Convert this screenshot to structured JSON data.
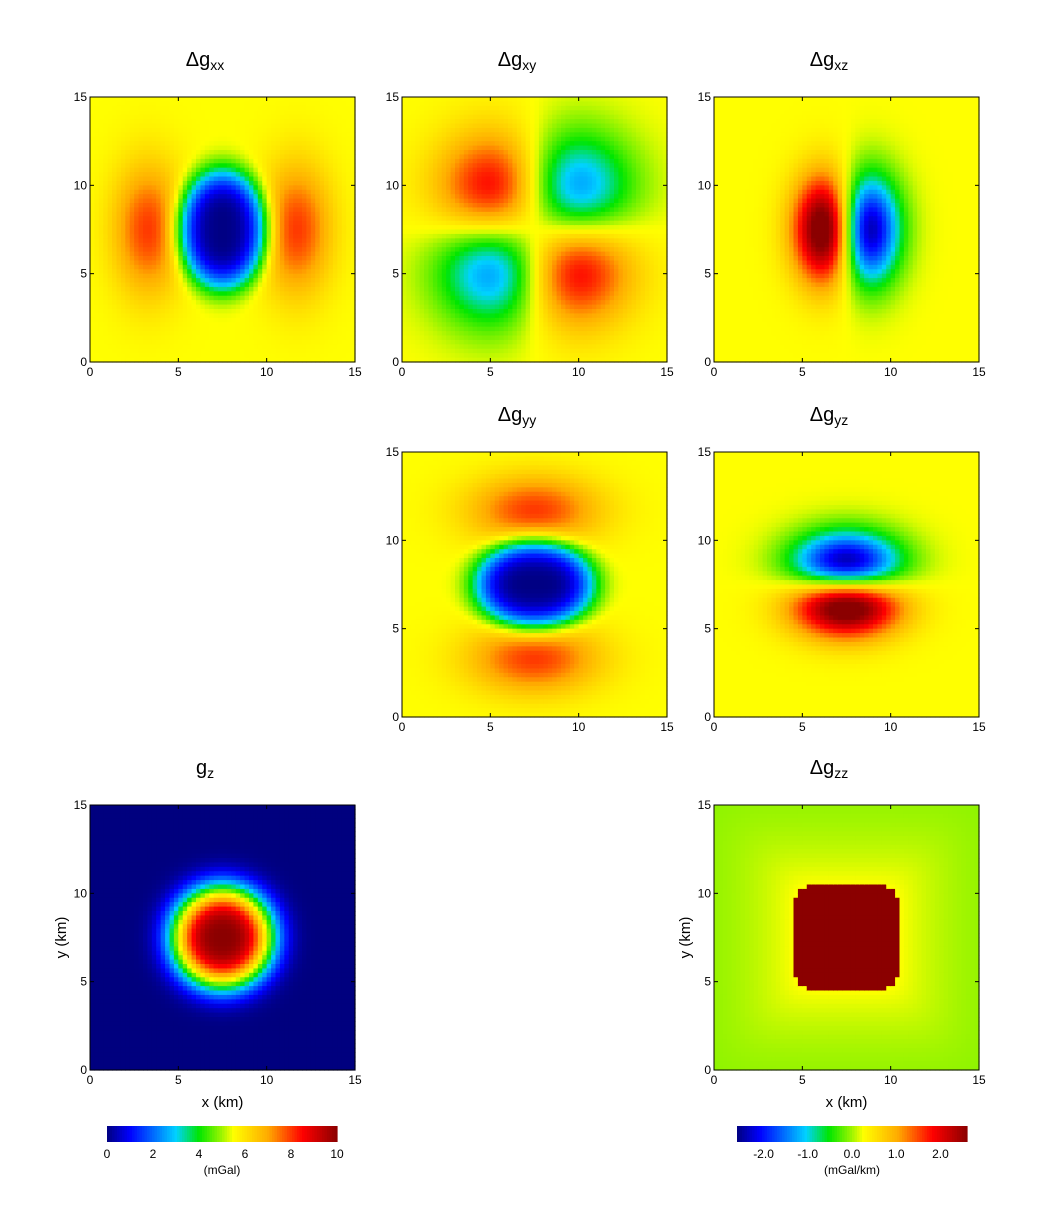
{
  "chart_data": [
    {
      "id": "gxx",
      "type": "heatmap",
      "title_prefix": "Δg",
      "title_sub": "xx",
      "pattern": "gxx",
      "xlim": [
        0,
        15
      ],
      "ylim": [
        0,
        15
      ],
      "xticks": [
        "0",
        "5",
        "10",
        "15"
      ],
      "yticks": [
        "0",
        "5",
        "10",
        "15"
      ],
      "xlabel": "",
      "ylabel": "",
      "colorscale": "mGal/km",
      "value_range": [
        -2.5,
        2.5
      ]
    },
    {
      "id": "gxy",
      "type": "heatmap",
      "title_prefix": "Δg",
      "title_sub": "xy",
      "pattern": "gxy",
      "xlim": [
        0,
        15
      ],
      "ylim": [
        0,
        15
      ],
      "xticks": [
        "0",
        "5",
        "10",
        "15"
      ],
      "yticks": [
        "0",
        "5",
        "10",
        "15"
      ],
      "xlabel": "",
      "ylabel": "",
      "colorscale": "mGal/km",
      "value_range": [
        -2.5,
        2.5
      ]
    },
    {
      "id": "gxz",
      "type": "heatmap",
      "title_prefix": "Δg",
      "title_sub": "xz",
      "pattern": "gxz",
      "xlim": [
        0,
        15
      ],
      "ylim": [
        0,
        15
      ],
      "xticks": [
        "0",
        "5",
        "10",
        "15"
      ],
      "yticks": [
        "0",
        "5",
        "10",
        "15"
      ],
      "xlabel": "",
      "ylabel": "",
      "colorscale": "mGal/km",
      "value_range": [
        -2.5,
        2.5
      ]
    },
    {
      "id": "gyy",
      "type": "heatmap",
      "title_prefix": "Δg",
      "title_sub": "yy",
      "pattern": "gyy",
      "xlim": [
        0,
        15
      ],
      "ylim": [
        0,
        15
      ],
      "xticks": [
        "0",
        "5",
        "10",
        "15"
      ],
      "yticks": [
        "0",
        "5",
        "10",
        "15"
      ],
      "xlabel": "",
      "ylabel": "",
      "colorscale": "mGal/km",
      "value_range": [
        -2.5,
        2.5
      ]
    },
    {
      "id": "gyz",
      "type": "heatmap",
      "title_prefix": "Δg",
      "title_sub": "yz",
      "pattern": "gyz",
      "xlim": [
        0,
        15
      ],
      "ylim": [
        0,
        15
      ],
      "xticks": [
        "0",
        "5",
        "10",
        "15"
      ],
      "yticks": [
        "0",
        "5",
        "10",
        "15"
      ],
      "xlabel": "",
      "ylabel": "",
      "colorscale": "mGal/km",
      "value_range": [
        -2.5,
        2.5
      ]
    },
    {
      "id": "gz",
      "type": "heatmap",
      "title_prefix": "g",
      "title_sub": "z",
      "pattern": "gz",
      "xlim": [
        0,
        15
      ],
      "ylim": [
        0,
        15
      ],
      "xticks": [
        "0",
        "5",
        "10",
        "15"
      ],
      "yticks": [
        "0",
        "5",
        "10",
        "15"
      ],
      "xlabel": "x (km)",
      "ylabel": "y (km)",
      "colorscale": "mGal",
      "value_range": [
        0,
        10
      ]
    },
    {
      "id": "gzz",
      "type": "heatmap",
      "title_prefix": "Δg",
      "title_sub": "zz",
      "pattern": "gzz",
      "xlim": [
        0,
        15
      ],
      "ylim": [
        0,
        15
      ],
      "xticks": [
        "0",
        "5",
        "10",
        "15"
      ],
      "yticks": [
        "0",
        "5",
        "10",
        "15"
      ],
      "xlabel": "x (km)",
      "ylabel": "y (km)",
      "colorscale": "mGal/km",
      "value_range": [
        -2.5,
        2.5
      ]
    }
  ],
  "colorbars": [
    {
      "id": "cb-mgal",
      "tick_labels": [
        "0",
        "2",
        "4",
        "6",
        "8",
        "10"
      ],
      "tick_values": [
        0,
        2,
        4,
        6,
        8,
        10
      ],
      "range": [
        0,
        10
      ],
      "unit": "(mGal)"
    },
    {
      "id": "cb-mgalkm",
      "tick_labels": [
        "-2.0",
        "-1.0",
        "0.0",
        "1.0",
        "2.0"
      ],
      "tick_values": [
        -2,
        -1,
        0,
        1,
        2
      ],
      "range": [
        -2.6,
        2.6
      ],
      "unit": "(mGal/km)"
    }
  ],
  "colors": {
    "min": "#00007f",
    "blue": "#0000ff",
    "green": "#00e000",
    "yellow": "#ffff00",
    "red": "#ff0000",
    "max": "#8b0000"
  }
}
